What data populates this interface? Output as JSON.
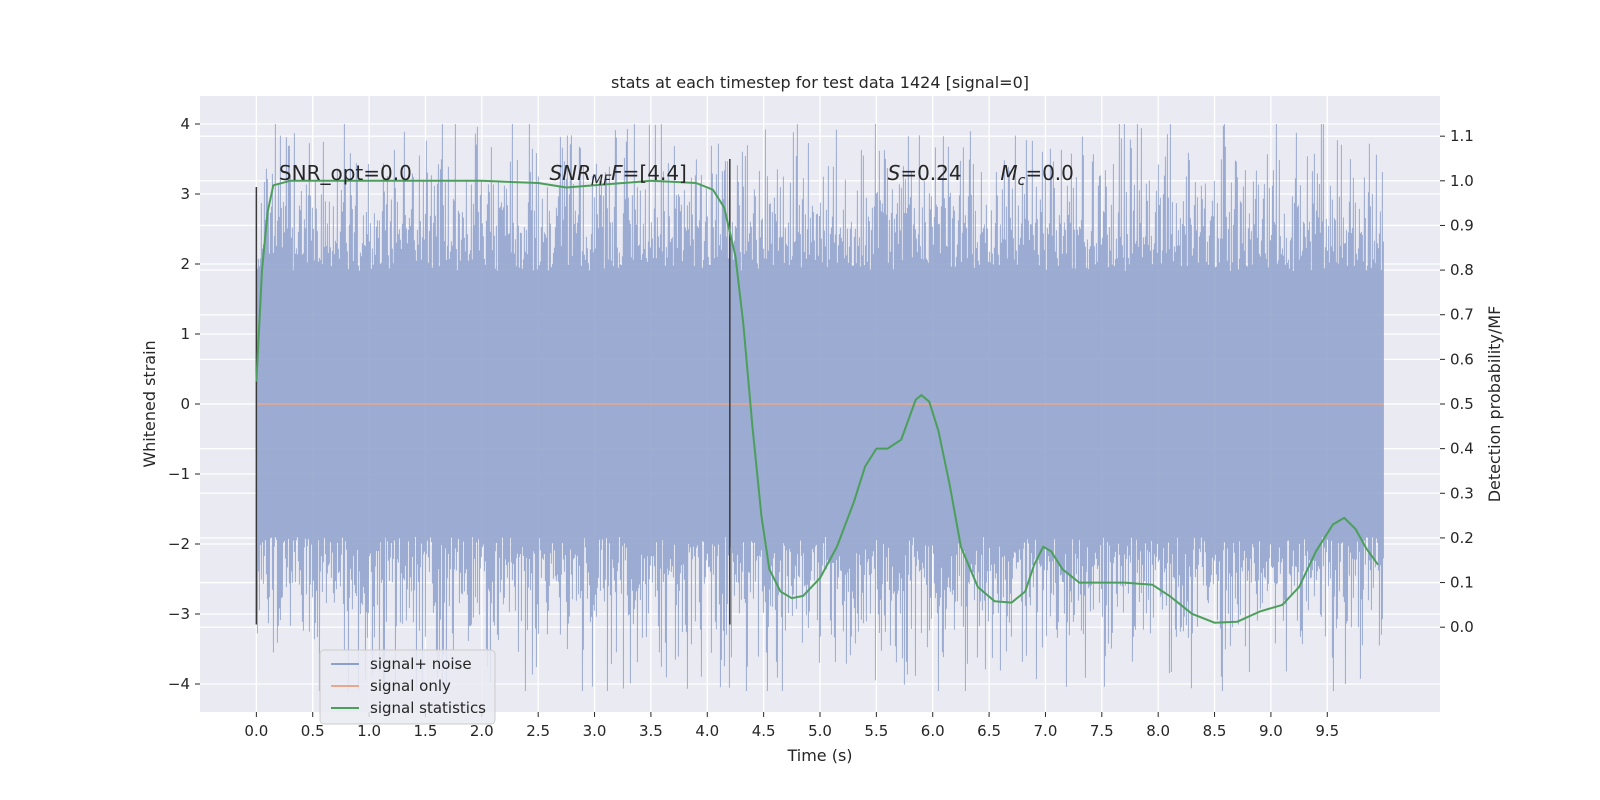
{
  "chart_data": {
    "type": "line",
    "title": "stats at each timestep for test data 1424 [signal=0]",
    "xlabel": "Time (s)",
    "ylabel": "Whitened strain",
    "y2label": "Detection probability/MF",
    "xlim": [
      -0.5,
      10.5
    ],
    "ylim": [
      -4.4,
      4.4
    ],
    "y2lim": [
      -0.19,
      1.19
    ],
    "xticks": [
      0.0,
      0.5,
      1.0,
      1.5,
      2.0,
      2.5,
      3.0,
      3.5,
      4.0,
      4.5,
      5.0,
      5.5,
      6.0,
      6.5,
      7.0,
      7.5,
      8.0,
      8.5,
      9.0,
      9.5
    ],
    "xtick_labels": [
      "0.0",
      "0.5",
      "1.0",
      "1.5",
      "2.0",
      "2.5",
      "3.0",
      "3.5",
      "4.0",
      "4.5",
      "5.0",
      "5.5",
      "6.0",
      "6.5",
      "7.0",
      "7.5",
      "8.0",
      "8.5",
      "9.0",
      "9.5"
    ],
    "yticks": [
      4,
      3,
      2,
      1,
      0,
      -1,
      -2,
      -3,
      -4
    ],
    "ytick_labels": [
      "4",
      "3",
      "2",
      "1",
      "0",
      "−1",
      "−2",
      "−3",
      "−4"
    ],
    "y2ticks": [
      1.1,
      1.0,
      0.9,
      0.8,
      0.7,
      0.6,
      0.5,
      0.4,
      0.3,
      0.2,
      0.1,
      0.0
    ],
    "y2tick_labels": [
      "1.1",
      "1.0",
      "0.9",
      "0.8",
      "0.7",
      "0.6",
      "0.5",
      "0.4",
      "0.3",
      "0.2",
      "0.1",
      "0.0"
    ],
    "grid": true,
    "legend_position": "lower-left",
    "series": [
      {
        "name": "signal+ noise",
        "color": "#8da0cb",
        "kind": "noise",
        "x_range": [
          0.0,
          10.0
        ],
        "core_amplitude": 1.9,
        "typical_max": 3.2,
        "max": 4.0,
        "min": -4.1
      },
      {
        "name": "signal only",
        "color": "#e8a88b",
        "kind": "constant",
        "x_range": [
          0.0,
          10.0
        ],
        "value": 0.0
      },
      {
        "name": "signal statistics",
        "color": "#4c9f5a",
        "kind": "line",
        "axis": "right",
        "points": [
          [
            0.0,
            0.55
          ],
          [
            0.05,
            0.8
          ],
          [
            0.1,
            0.93
          ],
          [
            0.15,
            0.99
          ],
          [
            0.3,
            1.0
          ],
          [
            1.0,
            1.0
          ],
          [
            1.5,
            1.0
          ],
          [
            2.0,
            1.0
          ],
          [
            2.5,
            0.995
          ],
          [
            2.75,
            0.985
          ],
          [
            3.0,
            0.99
          ],
          [
            3.5,
            1.0
          ],
          [
            3.9,
            0.995
          ],
          [
            4.05,
            0.98
          ],
          [
            4.15,
            0.94
          ],
          [
            4.25,
            0.83
          ],
          [
            4.32,
            0.68
          ],
          [
            4.4,
            0.45
          ],
          [
            4.48,
            0.25
          ],
          [
            4.55,
            0.13
          ],
          [
            4.65,
            0.08
          ],
          [
            4.75,
            0.065
          ],
          [
            4.85,
            0.07
          ],
          [
            5.0,
            0.11
          ],
          [
            5.15,
            0.18
          ],
          [
            5.3,
            0.28
          ],
          [
            5.4,
            0.36
          ],
          [
            5.5,
            0.4
          ],
          [
            5.6,
            0.4
          ],
          [
            5.72,
            0.42
          ],
          [
            5.85,
            0.51
          ],
          [
            5.9,
            0.52
          ],
          [
            5.97,
            0.505
          ],
          [
            6.05,
            0.44
          ],
          [
            6.15,
            0.32
          ],
          [
            6.25,
            0.18
          ],
          [
            6.4,
            0.09
          ],
          [
            6.55,
            0.058
          ],
          [
            6.7,
            0.055
          ],
          [
            6.82,
            0.08
          ],
          [
            6.9,
            0.14
          ],
          [
            6.98,
            0.18
          ],
          [
            7.05,
            0.17
          ],
          [
            7.15,
            0.13
          ],
          [
            7.3,
            0.1
          ],
          [
            7.5,
            0.1
          ],
          [
            7.7,
            0.1
          ],
          [
            7.95,
            0.095
          ],
          [
            8.1,
            0.07
          ],
          [
            8.3,
            0.03
          ],
          [
            8.5,
            0.01
          ],
          [
            8.7,
            0.012
          ],
          [
            8.9,
            0.035
          ],
          [
            9.1,
            0.05
          ],
          [
            9.25,
            0.09
          ],
          [
            9.4,
            0.17
          ],
          [
            9.55,
            0.23
          ],
          [
            9.65,
            0.245
          ],
          [
            9.75,
            0.22
          ],
          [
            9.85,
            0.175
          ],
          [
            9.95,
            0.14
          ]
        ]
      }
    ],
    "vlines": [
      {
        "x": 0.0,
        "y_range": [
          -3.15,
          3.1
        ]
      },
      {
        "x": 4.2,
        "y_range": [
          -3.15,
          3.5
        ]
      }
    ],
    "annotations": [
      {
        "x": 0.2,
        "y": 3.2,
        "plain": "SNR_opt=0.0"
      },
      {
        "x": 2.6,
        "y": 3.2,
        "italic": "SNR",
        "sub": "MF",
        "italic_tail": "F",
        "tail": "=[4.4]"
      },
      {
        "x": 5.6,
        "y": 3.2,
        "italic": "S",
        "tail": "=0.24"
      },
      {
        "x": 6.6,
        "y": 3.2,
        "italic": "M",
        "sub": "c",
        "tail": "=0.0"
      }
    ]
  }
}
